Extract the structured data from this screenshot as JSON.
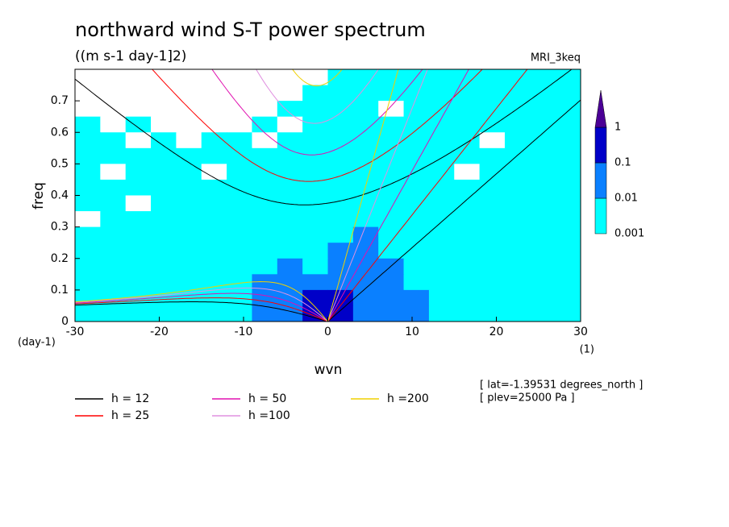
{
  "chart_data": {
    "type": "spectrum",
    "title": "northward wind S-T power spectrum",
    "subtitle": "((m s-1 day-1]2)",
    "model_label": "MRI_3keq",
    "x_label": "wvn",
    "y_label": "freq",
    "y_unit_label": "(day-1)",
    "x_unit_label": "(1)",
    "notes": [
      "[ lat=-1.39531 degrees_north ]",
      "[ plev=25000 Pa ]"
    ],
    "xlim": [
      -30,
      30
    ],
    "ylim": [
      0,
      0.8
    ],
    "xticks": [
      -30,
      -20,
      -10,
      0,
      10,
      20,
      30
    ],
    "yticks": [
      0,
      0.1,
      0.2,
      0.3,
      0.4,
      0.5,
      0.6,
      0.7
    ],
    "colorbar": {
      "levels": [
        0.001,
        0.01,
        0.1,
        1
      ],
      "colors": [
        "#00ffff",
        "#0a80ff",
        "#0000c8",
        "#4b0096"
      ]
    },
    "field": [
      [
        0.0005,
        0.0005,
        0.0005,
        0.0005,
        0.0005,
        0.0005,
        0.0005,
        0.0005,
        0.0005,
        0.0005,
        0.003,
        0.003,
        0.003,
        0.003,
        0.003,
        0.003,
        0.003,
        0.003,
        0.003,
        0.003
      ],
      [
        0.0005,
        0.0005,
        0.0005,
        0.0005,
        0.0005,
        0.0005,
        0.0005,
        0.0005,
        0.0005,
        0.003,
        0.003,
        0.003,
        0.003,
        0.003,
        0.003,
        0.003,
        0.003,
        0.003,
        0.003,
        0.003
      ],
      [
        0.0005,
        0.0005,
        0.0005,
        0.0005,
        0.0005,
        0.0005,
        0.0005,
        0.0005,
        0.003,
        0.003,
        0.003,
        0.003,
        0.0005,
        0.003,
        0.003,
        0.003,
        0.003,
        0.003,
        0.003,
        0.003
      ],
      [
        0.003,
        0.0005,
        0.003,
        0.0005,
        0.0005,
        0.0005,
        0.0005,
        0.003,
        0.0005,
        0.003,
        0.003,
        0.003,
        0.003,
        0.003,
        0.003,
        0.003,
        0.003,
        0.003,
        0.003,
        0.003
      ],
      [
        0.003,
        0.003,
        0.0005,
        0.003,
        0.0005,
        0.003,
        0.003,
        0.0005,
        0.003,
        0.003,
        0.003,
        0.003,
        0.003,
        0.003,
        0.003,
        0.003,
        0.0005,
        0.003,
        0.003,
        0.003
      ],
      [
        0.003,
        0.003,
        0.003,
        0.003,
        0.003,
        0.003,
        0.003,
        0.003,
        0.003,
        0.003,
        0.003,
        0.003,
        0.003,
        0.003,
        0.003,
        0.003,
        0.003,
        0.003,
        0.003,
        0.003
      ],
      [
        0.003,
        0.0005,
        0.003,
        0.003,
        0.003,
        0.0005,
        0.003,
        0.003,
        0.003,
        0.003,
        0.003,
        0.003,
        0.003,
        0.003,
        0.003,
        0.0005,
        0.003,
        0.003,
        0.003,
        0.003
      ],
      [
        0.003,
        0.003,
        0.003,
        0.003,
        0.003,
        0.003,
        0.003,
        0.003,
        0.003,
        0.003,
        0.003,
        0.003,
        0.003,
        0.003,
        0.003,
        0.003,
        0.003,
        0.003,
        0.003,
        0.003
      ],
      [
        0.003,
        0.003,
        0.0005,
        0.003,
        0.003,
        0.003,
        0.003,
        0.003,
        0.003,
        0.003,
        0.003,
        0.003,
        0.003,
        0.003,
        0.003,
        0.003,
        0.003,
        0.003,
        0.003,
        0.003
      ],
      [
        0.0005,
        0.003,
        0.003,
        0.003,
        0.003,
        0.003,
        0.003,
        0.003,
        0.003,
        0.003,
        0.003,
        0.003,
        0.003,
        0.003,
        0.003,
        0.003,
        0.003,
        0.003,
        0.003,
        0.003
      ],
      [
        0.003,
        0.003,
        0.003,
        0.003,
        0.003,
        0.003,
        0.003,
        0.003,
        0.003,
        0.003,
        0.003,
        0.03,
        0.003,
        0.003,
        0.003,
        0.003,
        0.003,
        0.003,
        0.003,
        0.003
      ],
      [
        0.003,
        0.003,
        0.003,
        0.003,
        0.003,
        0.003,
        0.003,
        0.003,
        0.003,
        0.003,
        0.03,
        0.03,
        0.003,
        0.003,
        0.003,
        0.003,
        0.003,
        0.003,
        0.003,
        0.003
      ],
      [
        0.003,
        0.003,
        0.003,
        0.003,
        0.003,
        0.003,
        0.003,
        0.003,
        0.03,
        0.003,
        0.03,
        0.03,
        0.03,
        0.003,
        0.003,
        0.003,
        0.003,
        0.003,
        0.003,
        0.003
      ],
      [
        0.003,
        0.003,
        0.003,
        0.003,
        0.003,
        0.003,
        0.003,
        0.03,
        0.03,
        0.03,
        0.03,
        0.03,
        0.03,
        0.003,
        0.003,
        0.003,
        0.003,
        0.003,
        0.003,
        0.003
      ],
      [
        0.003,
        0.003,
        0.003,
        0.003,
        0.003,
        0.003,
        0.003,
        0.03,
        0.03,
        0.3,
        0.3,
        0.03,
        0.03,
        0.03,
        0.003,
        0.003,
        0.003,
        0.003,
        0.003,
        0.003
      ],
      [
        0.003,
        0.003,
        0.003,
        0.003,
        0.003,
        0.003,
        0.003,
        0.03,
        0.03,
        0.3,
        0.3,
        0.03,
        0.03,
        0.03,
        0.003,
        0.003,
        0.003,
        0.003,
        0.003,
        0.003
      ]
    ],
    "series": [
      {
        "name": "h = 12",
        "color": "#000000",
        "h": 12
      },
      {
        "name": "h = 25",
        "color": "#ff0000",
        "h": 25
      },
      {
        "name": "h = 50",
        "color": "#e010b0",
        "h": 50
      },
      {
        "name": "h =100",
        "color": "#e090e0",
        "h": 100
      },
      {
        "name": "h =200",
        "color": "#f0d000",
        "h": 200
      }
    ]
  }
}
